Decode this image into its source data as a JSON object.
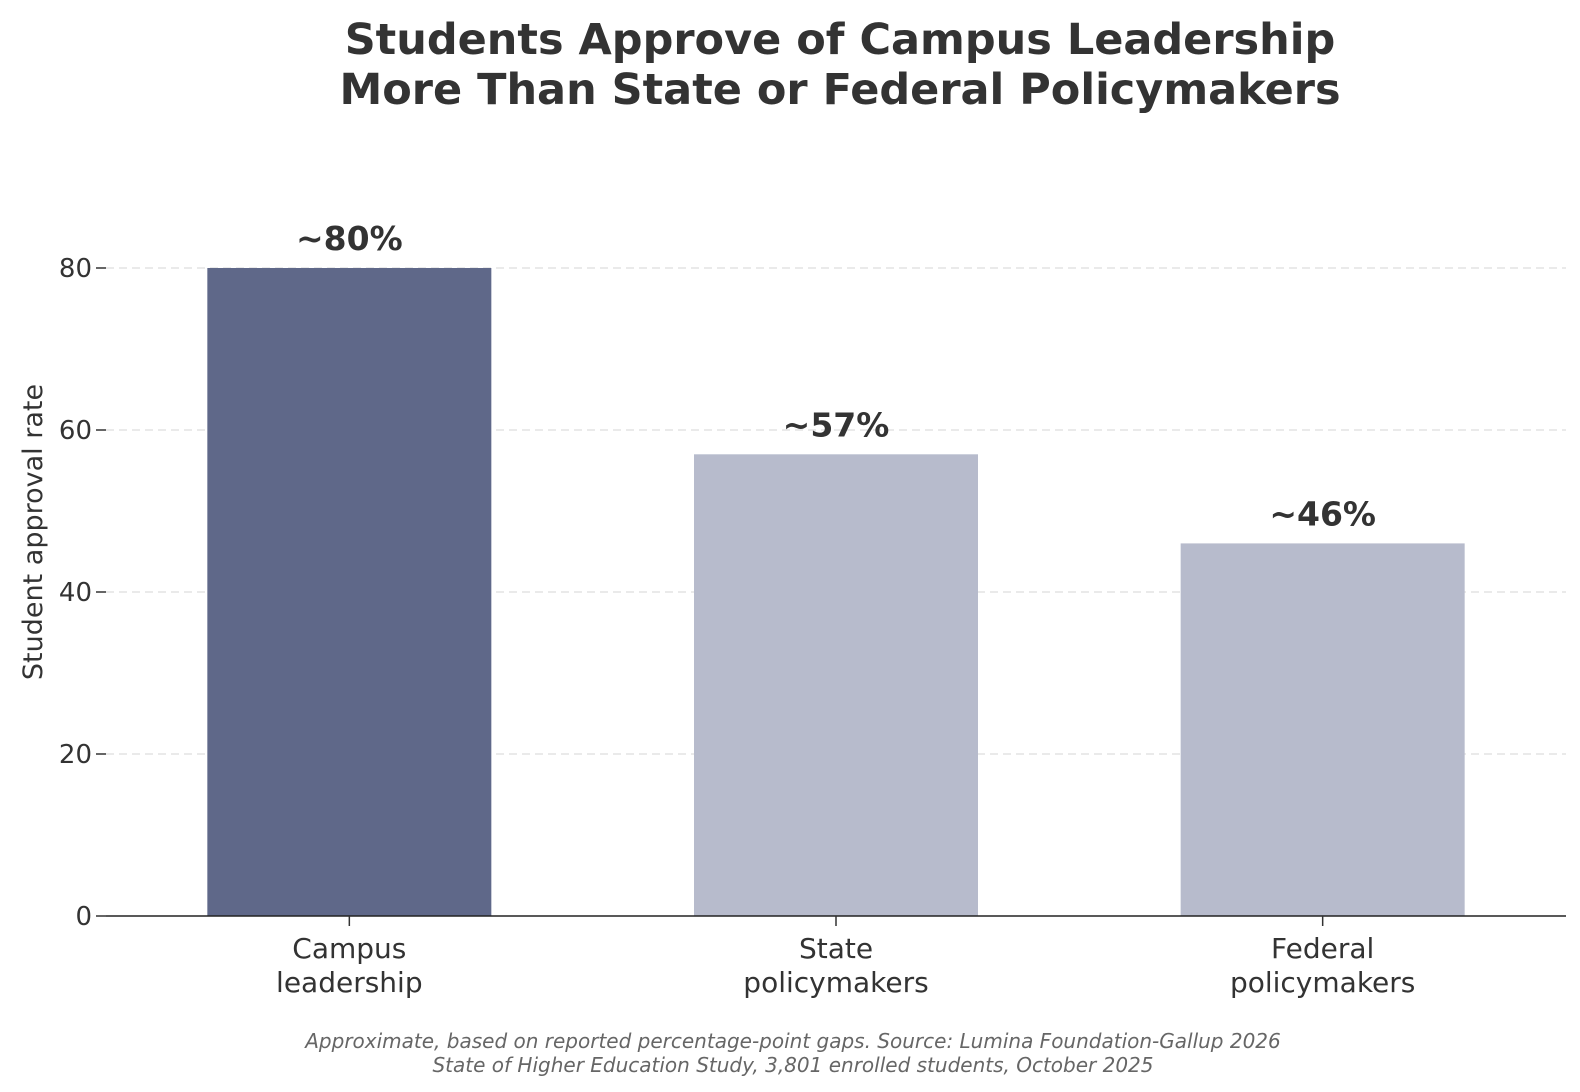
{
  "chart_data": {
    "type": "bar",
    "title_lines": [
      "Students Approve of Campus Leadership",
      "More Than State or Federal Policymakers"
    ],
    "xlabel": "",
    "ylabel": "Student approval rate",
    "ylim": [
      0,
      100
    ],
    "yticks": [
      0,
      20,
      40,
      60,
      80
    ],
    "grid": "horizontal dashed",
    "categories": [
      [
        "Campus",
        "leadership"
      ],
      [
        "State",
        "policymakers"
      ],
      [
        "Federal",
        "policymakers"
      ]
    ],
    "values": [
      80,
      57,
      46
    ],
    "bar_labels": [
      "~80%",
      "~57%",
      "~46%"
    ],
    "bar_colors": [
      "#5f6889",
      "#b7bbcc",
      "#b7bbcc"
    ],
    "footnote_lines": [
      "Approximate, based on reported percentage-point gaps. Source: Lumina Foundation-Gallup 2026",
      "State of Higher Education Study, 3,801 enrolled students, October 2025"
    ]
  }
}
